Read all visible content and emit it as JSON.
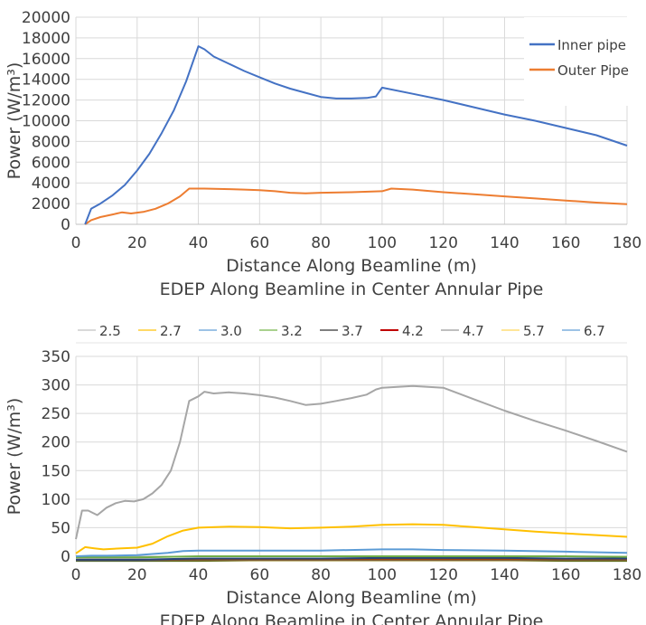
{
  "chart_data": [
    {
      "type": "line",
      "title": "",
      "xlabel": "Distance Along Beamline (m)",
      "ylabel": "Power (W/m³)",
      "caption": "EDEP Along Beamline in Center Annular Pipe",
      "xlim": [
        0,
        180
      ],
      "ylim": [
        0,
        20000
      ],
      "xticks": [
        0,
        20,
        40,
        60,
        80,
        100,
        120,
        140,
        160,
        180
      ],
      "yticks": [
        0,
        2000,
        4000,
        6000,
        8000,
        10000,
        12000,
        14000,
        16000,
        18000,
        20000
      ],
      "grid": true,
      "legend_position": "top-right",
      "series": [
        {
          "name": "Inner pipe",
          "color": "#4472c4",
          "points": [
            [
              3,
              0
            ],
            [
              5,
              1500
            ],
            [
              8,
              2000
            ],
            [
              12,
              2800
            ],
            [
              16,
              3800
            ],
            [
              20,
              5200
            ],
            [
              24,
              6800
            ],
            [
              28,
              8800
            ],
            [
              32,
              11000
            ],
            [
              36,
              13800
            ],
            [
              40,
              17200
            ],
            [
              42,
              16900
            ],
            [
              45,
              16200
            ],
            [
              50,
              15500
            ],
            [
              55,
              14800
            ],
            [
              60,
              14200
            ],
            [
              65,
              13600
            ],
            [
              70,
              13100
            ],
            [
              75,
              12700
            ],
            [
              80,
              12300
            ],
            [
              85,
              12150
            ],
            [
              90,
              12150
            ],
            [
              95,
              12200
            ],
            [
              98,
              12350
            ],
            [
              100,
              13200
            ],
            [
              110,
              12600
            ],
            [
              120,
              12000
            ],
            [
              130,
              11300
            ],
            [
              140,
              10600
            ],
            [
              150,
              10000
            ],
            [
              160,
              9300
            ],
            [
              170,
              8600
            ],
            [
              180,
              7600
            ]
          ]
        },
        {
          "name": "Outer Pipe",
          "color": "#ed7d31",
          "points": [
            [
              3,
              0
            ],
            [
              5,
              400
            ],
            [
              8,
              700
            ],
            [
              12,
              950
            ],
            [
              15,
              1150
            ],
            [
              18,
              1050
            ],
            [
              22,
              1200
            ],
            [
              26,
              1500
            ],
            [
              30,
              2000
            ],
            [
              34,
              2700
            ],
            [
              37,
              3450
            ],
            [
              42,
              3450
            ],
            [
              50,
              3400
            ],
            [
              55,
              3350
            ],
            [
              60,
              3300
            ],
            [
              65,
              3200
            ],
            [
              70,
              3050
            ],
            [
              75,
              3000
            ],
            [
              80,
              3050
            ],
            [
              90,
              3100
            ],
            [
              100,
              3200
            ],
            [
              103,
              3450
            ],
            [
              110,
              3350
            ],
            [
              120,
              3100
            ],
            [
              130,
              2900
            ],
            [
              140,
              2700
            ],
            [
              150,
              2500
            ],
            [
              160,
              2300
            ],
            [
              170,
              2100
            ],
            [
              180,
              1950
            ]
          ]
        }
      ]
    },
    {
      "type": "line",
      "title": "",
      "xlabel": "Distance Along Beamline (m)",
      "ylabel": "Power (W/m³)",
      "caption": "EDEP Along Beamline in Center Annular Pipe",
      "xlim": [
        0,
        180
      ],
      "ylim": [
        0,
        350
      ],
      "xticks": [
        0,
        20,
        40,
        60,
        80,
        100,
        120,
        140,
        160,
        180
      ],
      "yticks": [
        0,
        50,
        100,
        150,
        200,
        250,
        300,
        350
      ],
      "grid": true,
      "legend_position": "top",
      "series": [
        {
          "name": "2.5",
          "color": "#a6a6a6",
          "points": [
            [
              0,
              30
            ],
            [
              2,
              80
            ],
            [
              4,
              80
            ],
            [
              7,
              72
            ],
            [
              10,
              85
            ],
            [
              13,
              93
            ],
            [
              16,
              97
            ],
            [
              19,
              96
            ],
            [
              22,
              100
            ],
            [
              25,
              110
            ],
            [
              28,
              125
            ],
            [
              31,
              150
            ],
            [
              34,
              200
            ],
            [
              37,
              272
            ],
            [
              40,
              280
            ],
            [
              42,
              288
            ],
            [
              45,
              285
            ],
            [
              50,
              287
            ],
            [
              55,
              285
            ],
            [
              60,
              282
            ],
            [
              65,
              278
            ],
            [
              70,
              272
            ],
            [
              75,
              265
            ],
            [
              80,
              267
            ],
            [
              85,
              272
            ],
            [
              90,
              277
            ],
            [
              95,
              283
            ],
            [
              98,
              292
            ],
            [
              100,
              295
            ],
            [
              110,
              298
            ],
            [
              120,
              295
            ],
            [
              130,
              275
            ],
            [
              140,
              255
            ],
            [
              150,
              237
            ],
            [
              160,
              220
            ],
            [
              170,
              202
            ],
            [
              180,
              183
            ]
          ]
        },
        {
          "name": "2.7",
          "color": "#ffc000",
          "points": [
            [
              0,
              5
            ],
            [
              3,
              16
            ],
            [
              6,
              14
            ],
            [
              9,
              12
            ],
            [
              15,
              14
            ],
            [
              20,
              15
            ],
            [
              25,
              22
            ],
            [
              30,
              35
            ],
            [
              35,
              45
            ],
            [
              40,
              50
            ],
            [
              50,
              52
            ],
            [
              60,
              51
            ],
            [
              70,
              49
            ],
            [
              80,
              50
            ],
            [
              90,
              52
            ],
            [
              100,
              55
            ],
            [
              110,
              56
            ],
            [
              120,
              55
            ],
            [
              130,
              51
            ],
            [
              140,
              47
            ],
            [
              150,
              43
            ],
            [
              160,
              40
            ],
            [
              170,
              37
            ],
            [
              180,
              34
            ]
          ]
        },
        {
          "name": "3.0",
          "color": "#5b9bd5",
          "points": [
            [
              0,
              0
            ],
            [
              5,
              1
            ],
            [
              10,
              1
            ],
            [
              20,
              2
            ],
            [
              30,
              6
            ],
            [
              35,
              9
            ],
            [
              40,
              10
            ],
            [
              60,
              10
            ],
            [
              80,
              10
            ],
            [
              100,
              12
            ],
            [
              110,
              12
            ],
            [
              120,
              11
            ],
            [
              140,
              10
            ],
            [
              160,
              8
            ],
            [
              180,
              6
            ]
          ]
        },
        {
          "name": "3.2",
          "color": "#70ad47",
          "points": [
            [
              0,
              -2
            ],
            [
              20,
              -2
            ],
            [
              40,
              0
            ],
            [
              60,
              0
            ],
            [
              80,
              0
            ],
            [
              100,
              0
            ],
            [
              120,
              0
            ],
            [
              140,
              0
            ],
            [
              160,
              0
            ],
            [
              180,
              -1
            ]
          ]
        },
        {
          "name": "3.7",
          "color": "#264478",
          "points": [
            [
              0,
              -6
            ],
            [
              20,
              -6
            ],
            [
              40,
              -4
            ],
            [
              60,
              -4
            ],
            [
              80,
              -4
            ],
            [
              100,
              -3
            ],
            [
              120,
              -3
            ],
            [
              140,
              -3
            ],
            [
              160,
              -4
            ],
            [
              180,
              -4
            ]
          ]
        },
        {
          "name": "4.2",
          "color": "#9e480e",
          "points": [
            [
              0,
              -6
            ],
            [
              20,
              -6
            ],
            [
              40,
              -5
            ],
            [
              60,
              -5
            ],
            [
              80,
              -5
            ],
            [
              100,
              -5
            ],
            [
              120,
              -5
            ],
            [
              140,
              -5
            ],
            [
              160,
              -5
            ],
            [
              180,
              -5
            ]
          ]
        },
        {
          "name": "4.7",
          "color": "#636363",
          "points": [
            [
              0,
              -7
            ],
            [
              20,
              -7
            ],
            [
              40,
              -6
            ],
            [
              60,
              -6
            ],
            [
              80,
              -6
            ],
            [
              100,
              -6
            ],
            [
              120,
              -6
            ],
            [
              140,
              -6
            ],
            [
              160,
              -6
            ],
            [
              180,
              -6
            ]
          ]
        },
        {
          "name": "5.7",
          "color": "#997300",
          "points": [
            [
              0,
              -7
            ],
            [
              20,
              -7
            ],
            [
              40,
              -7
            ],
            [
              60,
              -7
            ],
            [
              80,
              -7
            ],
            [
              100,
              -7
            ],
            [
              120,
              -7
            ],
            [
              140,
              -7
            ],
            [
              160,
              -7
            ],
            [
              180,
              -7
            ]
          ]
        },
        {
          "name": "6.7",
          "color": "#43682b",
          "points": [
            [
              0,
              -8
            ],
            [
              20,
              -8
            ],
            [
              40,
              -8
            ],
            [
              60,
              -7
            ],
            [
              80,
              -7
            ],
            [
              100,
              -7
            ],
            [
              120,
              -7
            ],
            [
              140,
              -7
            ],
            [
              160,
              -8
            ],
            [
              180,
              -8
            ]
          ]
        }
      ],
      "legend_colors": [
        "#d9d9d9",
        "#ffd966",
        "#9dc3e6",
        "#a9d18e",
        "#7f7f7f",
        "#c00000",
        "#bfbfbf",
        "#ffe699",
        "#9dc3e6"
      ]
    }
  ]
}
